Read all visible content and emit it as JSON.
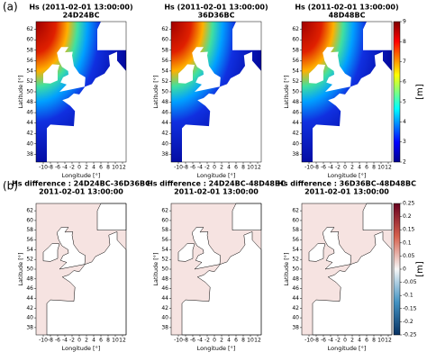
{
  "rows": [
    {
      "label": "(a)",
      "panels": [
        {
          "title": [
            "Hs (2011-02-01 13:00:00)",
            "24D24BC"
          ]
        },
        {
          "title": [
            "Hs (2011-02-01 13:00:00)",
            "36D36BC"
          ]
        },
        {
          "title": [
            "Hs (2011-02-01 13:00:00)",
            "48D48BC"
          ]
        }
      ],
      "colorbar": {
        "label": "[m]",
        "lim": [
          2,
          9
        ],
        "ticks": [
          2,
          3,
          4,
          5,
          6,
          7,
          8,
          9
        ]
      }
    },
    {
      "label": "(b)",
      "panels": [
        {
          "title": [
            "Hs difference : 24D24BC-36D36BC",
            "2011-02-01 13:00:00"
          ]
        },
        {
          "title": [
            "Hs difference : 24D24BC-48D48BC",
            "2011-02-01 13:00:00"
          ]
        },
        {
          "title": [
            "Hs difference : 36D36BC-48D48BC",
            "2011-02-01 13:00:00"
          ]
        }
      ],
      "colorbar": {
        "label": "[m]",
        "lim": [
          -0.25,
          0.25
        ],
        "ticks": [
          -0.25,
          -0.2,
          -0.15,
          -0.1,
          -0.05,
          0,
          0.05,
          0.1,
          0.15,
          0.2,
          0.25
        ]
      }
    }
  ],
  "x_axis": {
    "label": "Longitude [°]",
    "lim": [
      -12,
      13
    ],
    "ticks": [
      -10,
      -8,
      -6,
      -4,
      -2,
      0,
      2,
      4,
      6,
      8,
      10,
      12
    ]
  },
  "y_axis": {
    "label": "Latitude [°]",
    "lim": [
      36.5,
      63.5
    ],
    "ticks": [
      38,
      40,
      42,
      44,
      46,
      48,
      50,
      52,
      54,
      56,
      58,
      60,
      62
    ]
  }
}
